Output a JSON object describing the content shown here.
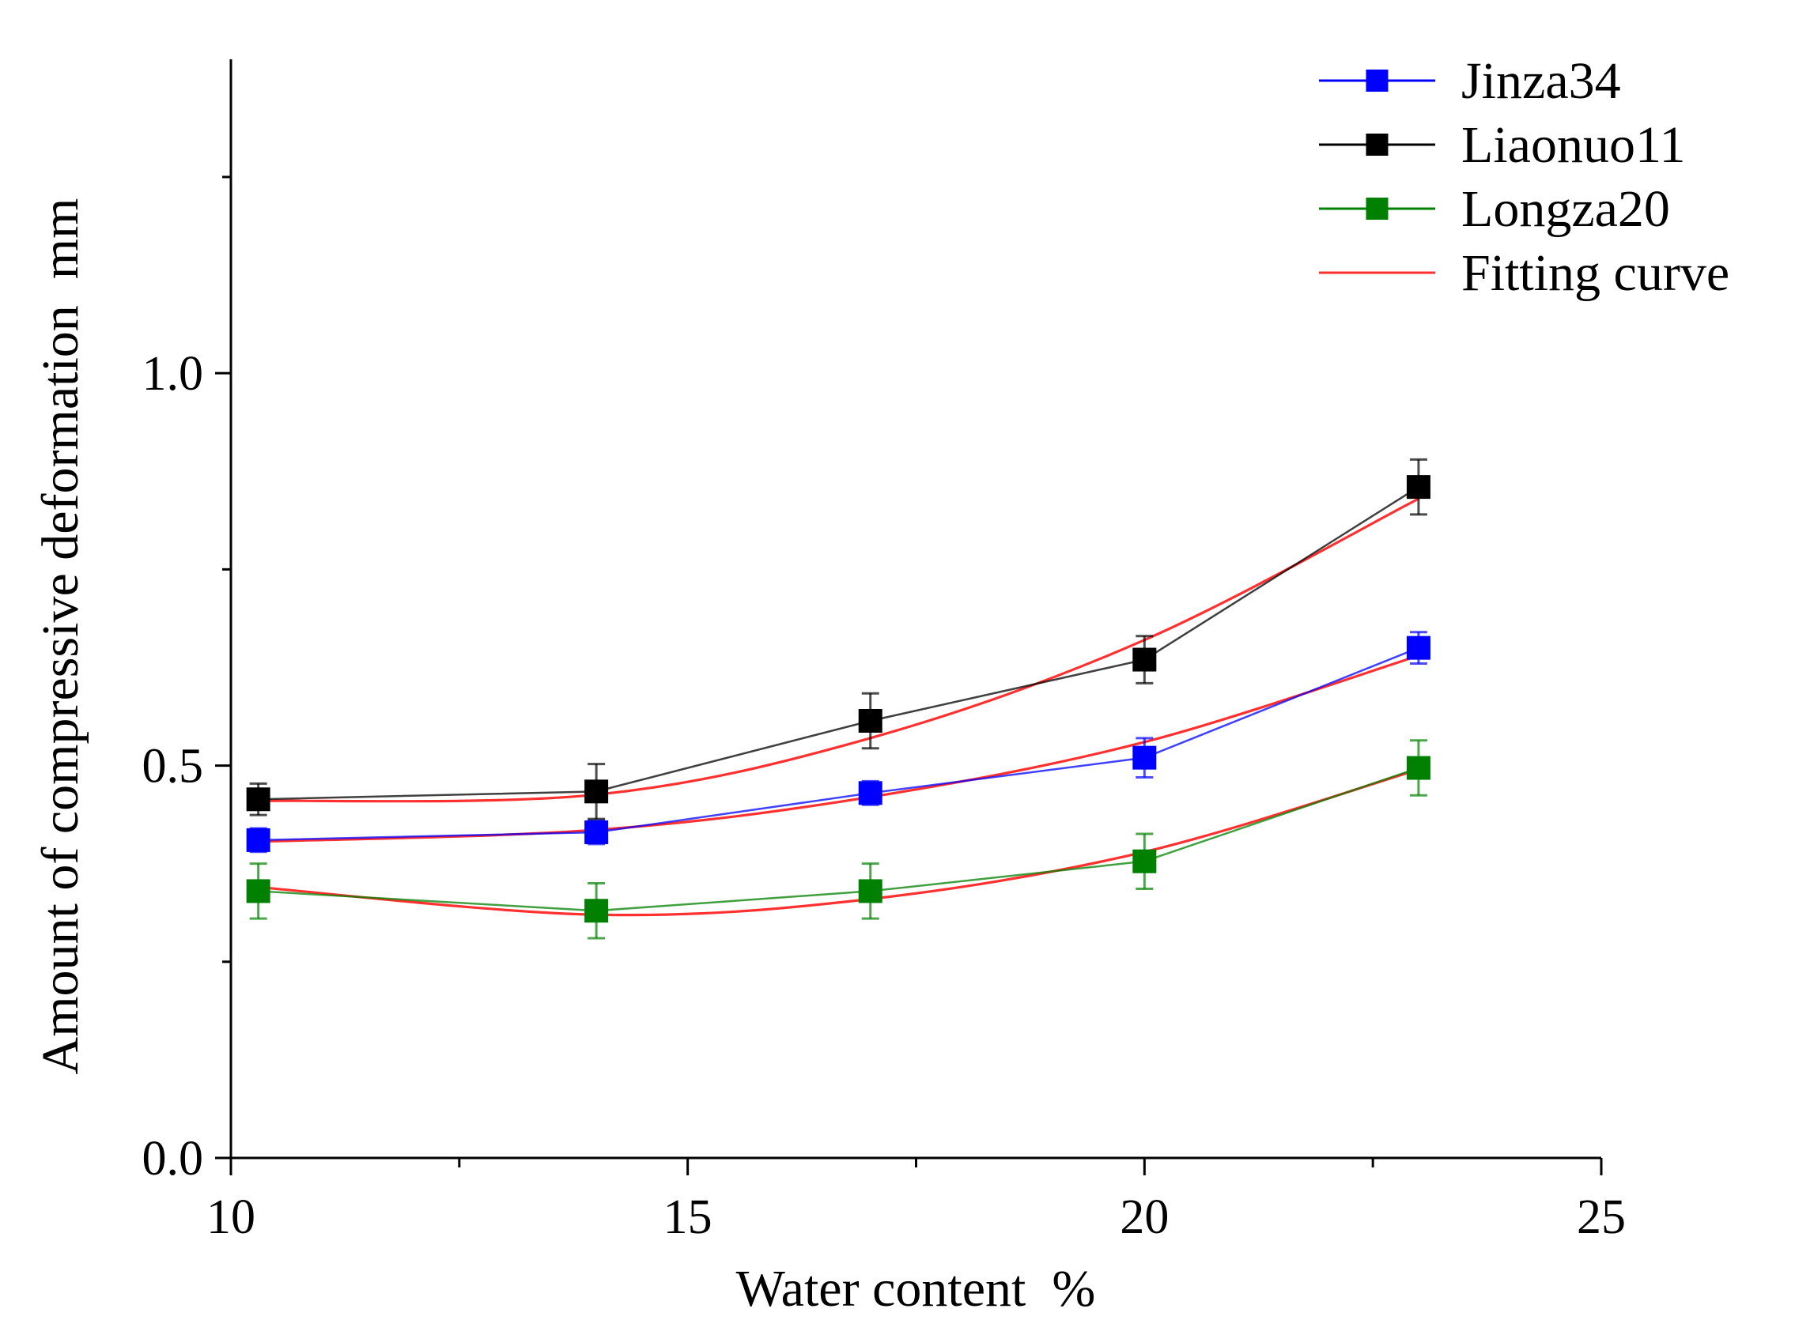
{
  "chart_data": {
    "type": "line",
    "title": "",
    "xlabel": "Water content  %",
    "ylabel": "Amount of compressive deformation  mm",
    "xlim": [
      10,
      25
    ],
    "ylim": [
      0,
      1.4
    ],
    "x_ticks": [
      10,
      15,
      20,
      25
    ],
    "y_ticks": [
      0.0,
      0.5,
      1.0
    ],
    "x_tick_labels": [
      "10",
      "15",
      "20",
      "25"
    ],
    "y_tick_labels": [
      "0.0",
      "0.5",
      "1.0"
    ],
    "grid": false,
    "legend_position": "top-right",
    "x": [
      10.3,
      14,
      17,
      20,
      23
    ],
    "series": [
      {
        "name": "Jinza34",
        "color": "#0000ff",
        "marker": "square",
        "values": [
          0.405,
          0.415,
          0.465,
          0.51,
          0.65
        ],
        "errors": [
          0.015,
          0.015,
          0.015,
          0.025,
          0.02
        ]
      },
      {
        "name": "Liaonuo11",
        "color": "#000000",
        "marker": "square",
        "values": [
          0.457,
          0.467,
          0.557,
          0.635,
          0.855
        ],
        "errors": [
          0.02,
          0.035,
          0.035,
          0.03,
          0.035
        ]
      },
      {
        "name": "Longza20",
        "color": "#008000",
        "marker": "square",
        "values": [
          0.34,
          0.315,
          0.34,
          0.378,
          0.497
        ],
        "errors": [
          0.035,
          0.035,
          0.035,
          0.035,
          0.035
        ]
      }
    ],
    "fits": [
      {
        "name": "Fitting curve",
        "color": "#ff3030",
        "of": "Jinza34",
        "values": [
          0.403,
          0.418,
          0.46,
          0.53,
          0.64
        ]
      },
      {
        "name": "Fitting curve",
        "color": "#ff3030",
        "of": "Liaonuo11",
        "values": [
          0.455,
          0.463,
          0.535,
          0.66,
          0.84
        ]
      },
      {
        "name": "Fitting curve",
        "color": "#ff3030",
        "of": "Longza20",
        "values": [
          0.345,
          0.31,
          0.33,
          0.39,
          0.495
        ]
      }
    ],
    "legend": [
      {
        "label": "Jinza34",
        "color": "#0000ff",
        "marker": true
      },
      {
        "label": "Liaonuo11",
        "color": "#000000",
        "marker": true
      },
      {
        "label": "Longza20",
        "color": "#008000",
        "marker": true
      },
      {
        "label": "Fitting curve",
        "color": "#ff3030",
        "marker": false
      }
    ]
  }
}
